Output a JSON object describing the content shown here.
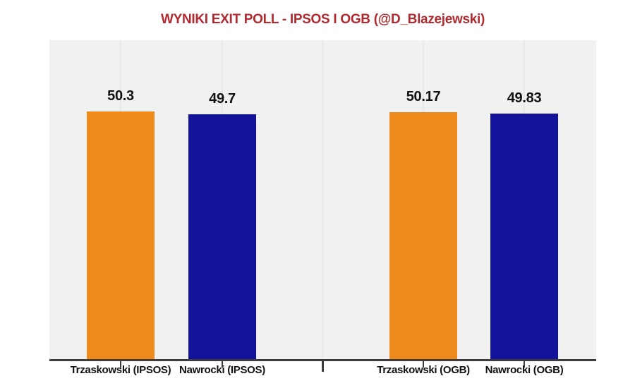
{
  "chart_data": {
    "type": "bar",
    "title": "WYNIKI EXIT POLL - IPSOS I OGB (@D_Blazejewski)",
    "categories": [
      "Trzaskowski (IPSOS)",
      "Nawrocki (IPSOS)",
      "Trzaskowski (OGB)",
      "Nawrocki (OGB)"
    ],
    "values": [
      50.3,
      49.7,
      50.17,
      49.83
    ],
    "value_labels": [
      "50.3",
      "49.7",
      "50.17",
      "49.83"
    ],
    "bar_colors": [
      "#ef8a1c",
      "#12129b",
      "#ef8a1c",
      "#12129b"
    ],
    "groups": [
      "IPSOS",
      "OGB"
    ],
    "candidate_colors": {
      "Trzaskowski": "#ef8a1c",
      "Nawrocki": "#12129b"
    },
    "xlabel": "",
    "ylabel": "",
    "ylim": [
      0,
      64.8
    ],
    "grid": "faint vertical gridlines at each bar center and at group separator",
    "legend": "none",
    "colors": {
      "title": "#b02a30",
      "plot_background": "#f1f1f1",
      "gridline": "#e9e9e9",
      "axis": "#3d3d3d",
      "text": "#111111"
    }
  }
}
